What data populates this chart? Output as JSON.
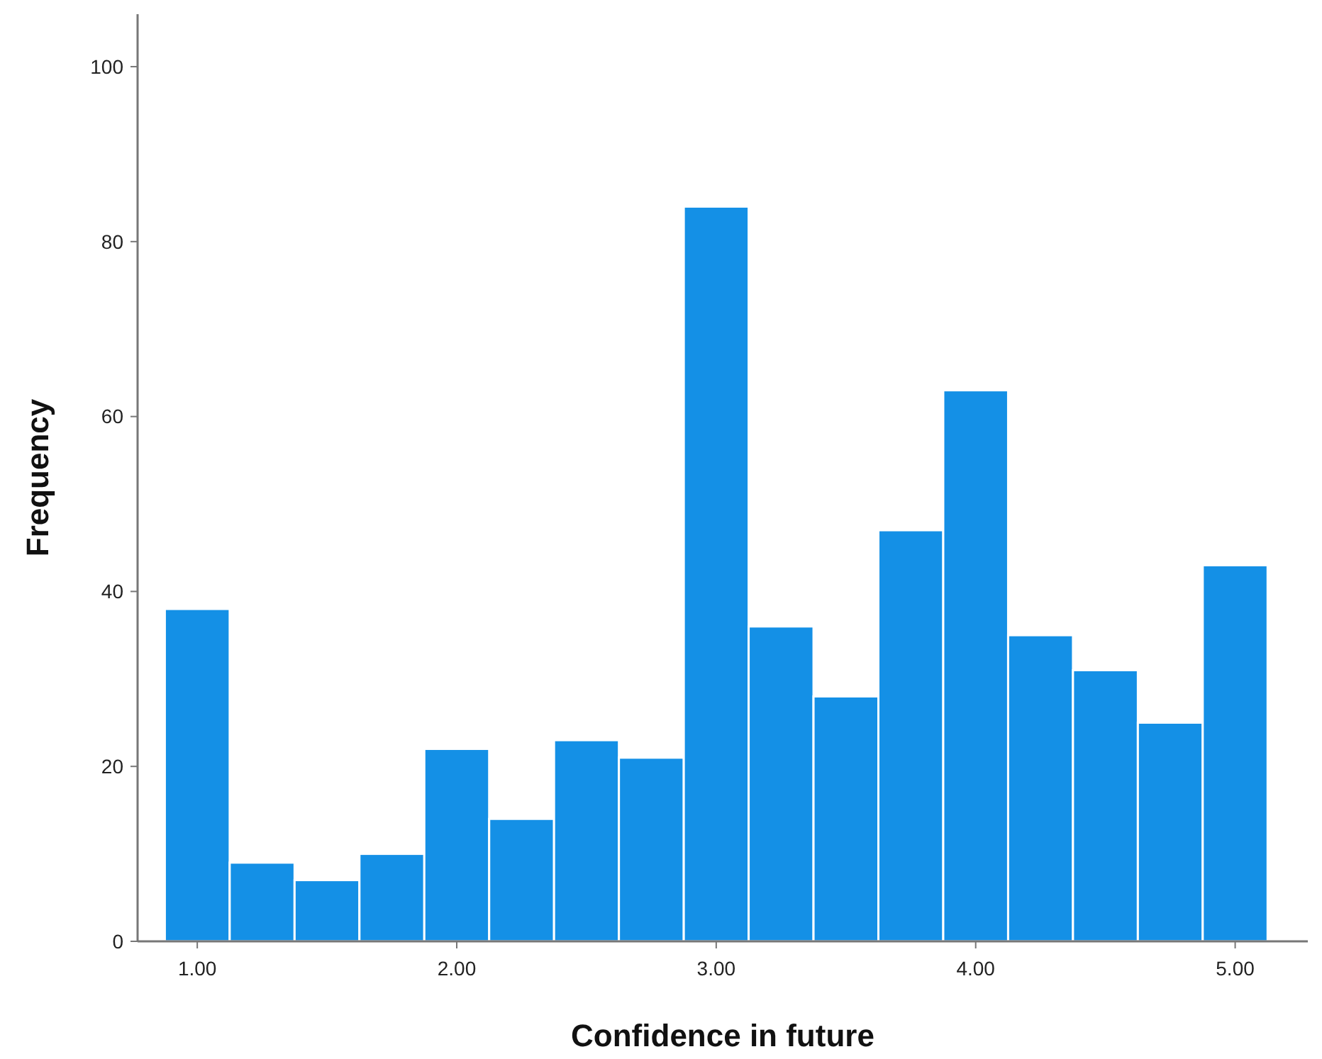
{
  "chart_data": {
    "type": "histogram",
    "xlabel": "Confidence in future",
    "ylabel": "Frequency",
    "bins": [
      0.875,
      1.125,
      1.375,
      1.625,
      1.875,
      2.125,
      2.375,
      2.625,
      2.875,
      3.125,
      3.375,
      3.625,
      3.875,
      4.125,
      4.375,
      4.625,
      4.875,
      5.125
    ],
    "values": [
      38,
      9,
      7,
      10,
      22,
      14,
      23,
      21,
      84,
      36,
      28,
      47,
      63,
      35,
      31,
      25,
      43
    ],
    "color": "#1490e6",
    "xlim": [
      0.77,
      5.28
    ],
    "ylim": [
      0,
      106
    ],
    "xticks": [
      {
        "value": 1,
        "label": "1.00"
      },
      {
        "value": 2,
        "label": "2.00"
      },
      {
        "value": 3,
        "label": "3.00"
      },
      {
        "value": 4,
        "label": "4.00"
      },
      {
        "value": 5,
        "label": "5.00"
      }
    ],
    "yticks": [
      0,
      20,
      40,
      60,
      80,
      100
    ]
  }
}
